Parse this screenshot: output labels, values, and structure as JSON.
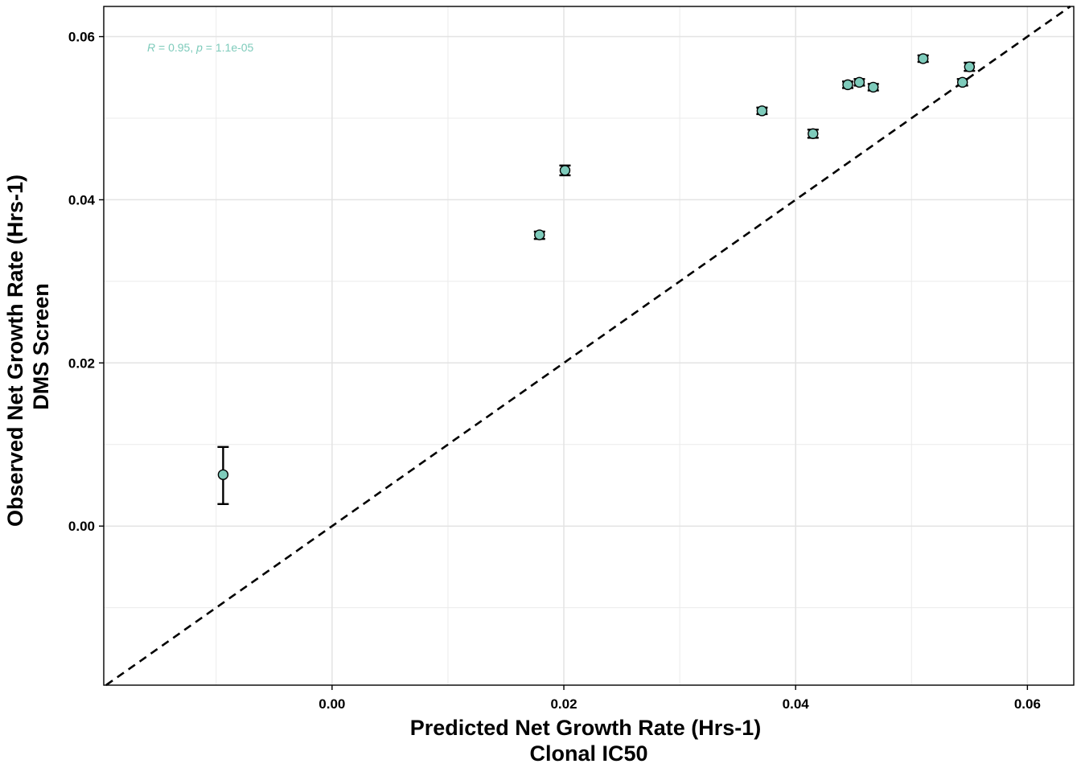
{
  "chart_data": {
    "type": "scatter",
    "xlabel": [
      "Predicted Net Growth Rate (Hrs-1)",
      "Clonal IC50"
    ],
    "ylabel": [
      "Observed Net Growth Rate (Hrs-1)",
      "DMS Screen"
    ],
    "xlim": [
      -0.0197,
      0.064
    ],
    "ylim": [
      -0.0195,
      0.0637
    ],
    "x_ticks": [
      {
        "value": 0.0,
        "label": "0.00"
      },
      {
        "value": 0.02,
        "label": "0.02"
      },
      {
        "value": 0.04,
        "label": "0.04"
      },
      {
        "value": 0.06,
        "label": "0.06"
      }
    ],
    "y_ticks": [
      {
        "value": 0.0,
        "label": "0.00"
      },
      {
        "value": 0.02,
        "label": "0.02"
      },
      {
        "value": 0.04,
        "label": "0.04"
      },
      {
        "value": 0.06,
        "label": "0.06"
      }
    ],
    "minor_grid_x": [
      -0.01,
      0.01,
      0.03,
      0.05
    ],
    "minor_grid_y": [
      -0.01,
      0.01,
      0.03,
      0.05
    ],
    "grid": true,
    "reference_line": {
      "style": "dashed",
      "slope": 1,
      "intercept": 0
    },
    "annotation": {
      "r_label": "R",
      "r_text": " = 0.95, ",
      "p_label": "p",
      "p_text": " = 1.1e-05"
    },
    "point_color": "#7ecbbb",
    "points": [
      {
        "x": -0.0094,
        "y": 0.0063,
        "ymin": 0.0027,
        "ymax": 0.0097
      },
      {
        "x": 0.0179,
        "y": 0.0357,
        "ymin": 0.0352,
        "ymax": 0.0361
      },
      {
        "x": 0.0201,
        "y": 0.0436,
        "ymin": 0.043,
        "ymax": 0.0442
      },
      {
        "x": 0.0371,
        "y": 0.0509,
        "ymin": 0.0505,
        "ymax": 0.0513
      },
      {
        "x": 0.0415,
        "y": 0.0481,
        "ymin": 0.0476,
        "ymax": 0.0486
      },
      {
        "x": 0.0445,
        "y": 0.0541,
        "ymin": 0.0537,
        "ymax": 0.0545
      },
      {
        "x": 0.0455,
        "y": 0.0544,
        "ymin": 0.054,
        "ymax": 0.0548
      },
      {
        "x": 0.0467,
        "y": 0.0538,
        "ymin": 0.0534,
        "ymax": 0.0542
      },
      {
        "x": 0.051,
        "y": 0.0573,
        "ymin": 0.0569,
        "ymax": 0.0577
      },
      {
        "x": 0.0544,
        "y": 0.0544,
        "ymin": 0.054,
        "ymax": 0.0548
      },
      {
        "x": 0.055,
        "y": 0.0563,
        "ymin": 0.0558,
        "ymax": 0.0568
      }
    ]
  }
}
